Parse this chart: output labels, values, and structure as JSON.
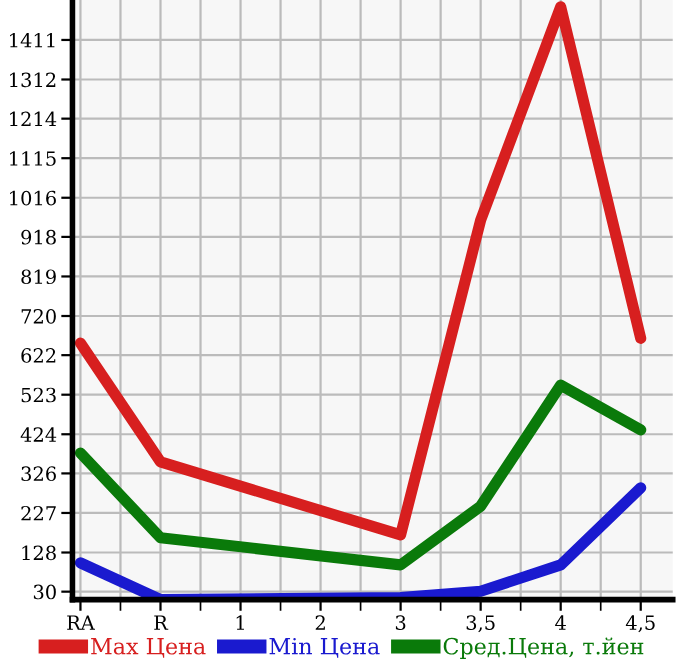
{
  "chart_data": {
    "type": "line",
    "categories": [
      "RA",
      "R",
      "1",
      "2",
      "3",
      "3,5",
      "4",
      "4,5"
    ],
    "series": [
      {
        "name": "Max Цена",
        "color": "#d71f1f",
        "values": [
          652,
          355,
          null,
          null,
          172,
          960,
          1494,
          664
        ]
      },
      {
        "name": "Min Цена",
        "color": "#1a1acf",
        "values": [
          102,
          10,
          null,
          null,
          15,
          31,
          97,
          290
        ]
      },
      {
        "name": "Сред.Цена, т.йен",
        "color": "#0a7a0a",
        "values": [
          377,
          165,
          null,
          null,
          97,
          244,
          547,
          435
        ]
      }
    ],
    "ylim": [
      10,
      1511
    ],
    "yticks": [
      30,
      128,
      227,
      326,
      424,
      523,
      622,
      720,
      819,
      918,
      1016,
      1115,
      1214,
      1312,
      1411
    ],
    "grid": true,
    "legend": "bottom",
    "marker": "none",
    "line_style": "solid"
  }
}
